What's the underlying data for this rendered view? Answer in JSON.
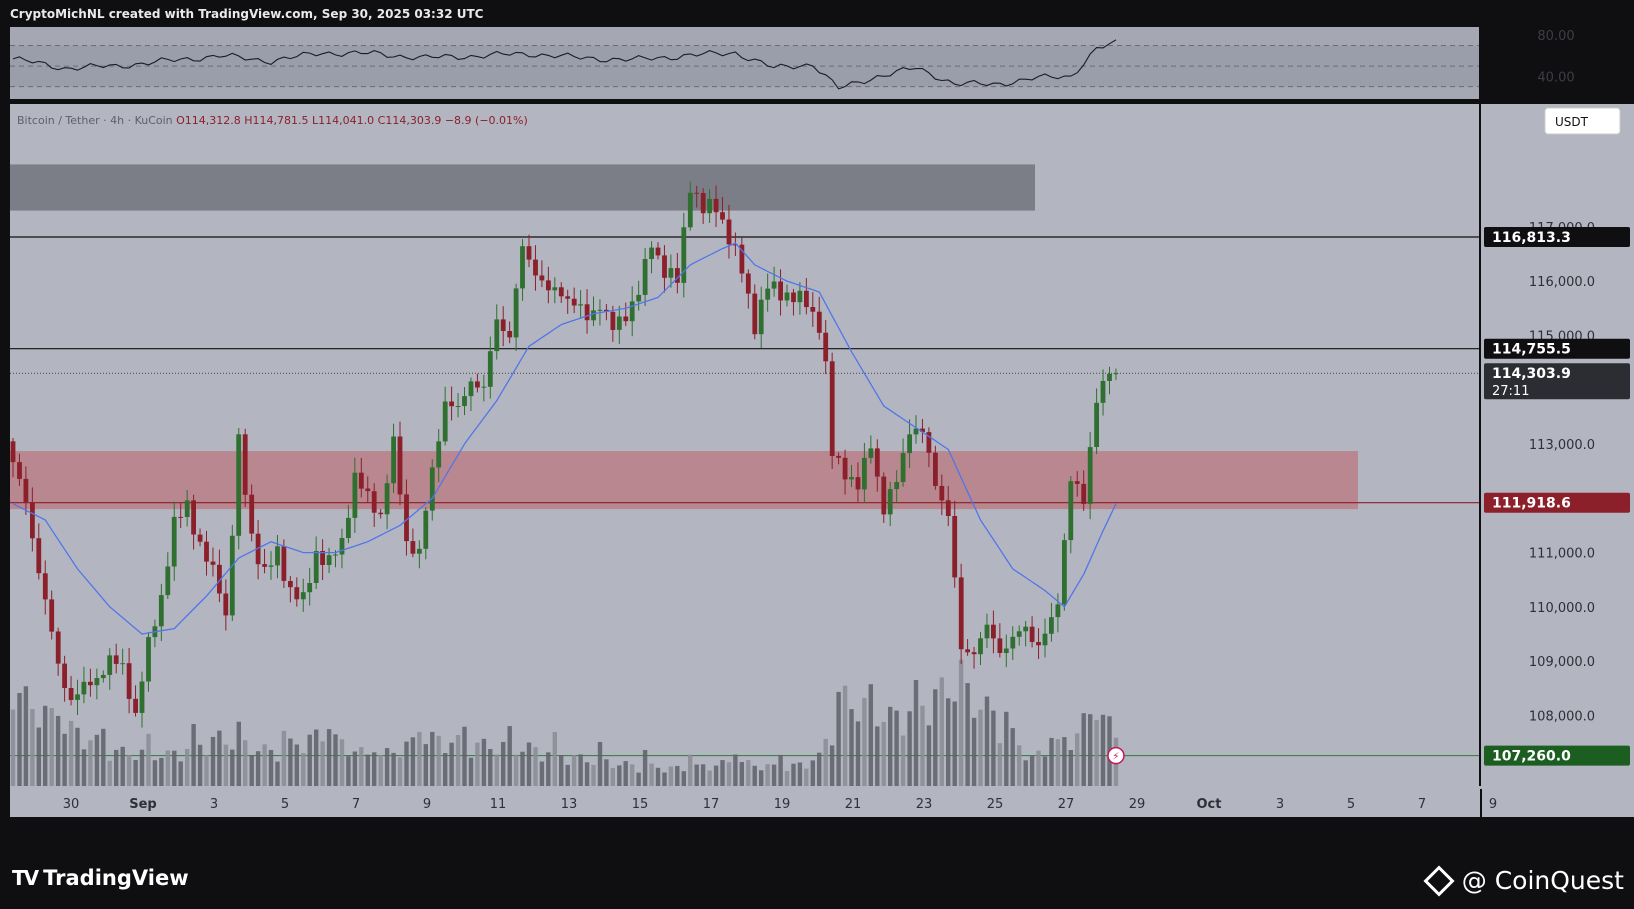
{
  "header": {
    "text": "CryptoMichNL created with TradingView.com, Sep 30, 2025 03:32 UTC"
  },
  "footer": {
    "brand_logo": "TV",
    "brand": "TradingView",
    "credit": "@ CoinQuest"
  },
  "colors": {
    "background": "#b3b6c1",
    "frame": "#0f0f11",
    "bull": "#2f6f2f",
    "bear": "#8b1f2a",
    "ma": "#5276e8",
    "supply_zone": "#7b7e87",
    "demand_zone": "#b88790",
    "rsi_panel": "#a5a8b2",
    "volume": "#5e6068"
  },
  "rsi": {
    "labels": [
      "80.00",
      "40.00"
    ],
    "band_top": 70,
    "band_bottom": 30
  },
  "chart_data": {
    "type": "candlestick",
    "symbol_line": {
      "name": "Bitcoin / Tether · 4h · KuCoin",
      "open": "O114,312.8",
      "high": "H114,781.5",
      "low": "L114,041.0",
      "close": "C114,303.9",
      "change": "−8.9 (−0.01%)"
    },
    "currency_button": "USDT",
    "y_axis": {
      "ticks": [
        117000,
        116000,
        115000,
        113000,
        111000,
        110000,
        109000,
        108000
      ],
      "tick_labels": [
        "117,000.0",
        "116,000.0",
        "115,000.0",
        "113,000.0",
        "111,000.0",
        "110,000.0",
        "109,000.0",
        "108,000.0"
      ]
    },
    "x_axis": {
      "labels": [
        "30",
        "Sep",
        "3",
        "5",
        "7",
        "9",
        "11",
        "13",
        "15",
        "17",
        "19",
        "21",
        "23",
        "25",
        "27",
        "29",
        "Oct",
        "3",
        "5",
        "7",
        "9"
      ]
    },
    "price_tags": [
      {
        "label": "116,813.3",
        "value": 116813.3,
        "style": "dark"
      },
      {
        "label": "114,755.5",
        "value": 114755.5,
        "style": "dark"
      },
      {
        "label": "114,303.9",
        "sub": "27:11",
        "value": 114303.9,
        "style": "current"
      },
      {
        "label": "111,918.6",
        "value": 111918.6,
        "style": "red"
      },
      {
        "label": "107,260.0",
        "value": 107260.0,
        "style": "green"
      }
    ],
    "horizontal_lines": [
      116813.3,
      114755.5,
      111918.6
    ],
    "current_price": 114303.9,
    "zones": [
      {
        "name": "supply",
        "from": 117300,
        "to": 118150
      },
      {
        "name": "demand",
        "from": 111800,
        "to": 112870
      }
    ],
    "moving_average_color": "#5276e8",
    "price_path": [
      [
        0,
        113050
      ],
      [
        3,
        111900
      ],
      [
        6,
        110100
      ],
      [
        8,
        108900
      ],
      [
        10,
        108300
      ],
      [
        14,
        108700
      ],
      [
        16,
        109000
      ],
      [
        18,
        108900
      ],
      [
        20,
        108000
      ],
      [
        22,
        109300
      ],
      [
        24,
        110200
      ],
      [
        26,
        111500
      ],
      [
        28,
        111900
      ],
      [
        30,
        111100
      ],
      [
        33,
        110400
      ],
      [
        34,
        109800
      ],
      [
        36,
        113000
      ],
      [
        38,
        111300
      ],
      [
        40,
        110600
      ],
      [
        42,
        111000
      ],
      [
        44,
        110300
      ],
      [
        46,
        110100
      ],
      [
        48,
        111000
      ],
      [
        50,
        110800
      ],
      [
        52,
        111200
      ],
      [
        54,
        112400
      ],
      [
        56,
        112000
      ],
      [
        58,
        111700
      ],
      [
        60,
        113000
      ],
      [
        62,
        111200
      ],
      [
        64,
        111000
      ],
      [
        66,
        112500
      ],
      [
        68,
        113800
      ],
      [
        70,
        113600
      ],
      [
        72,
        114200
      ],
      [
        74,
        114000
      ],
      [
        76,
        115300
      ],
      [
        78,
        115000
      ],
      [
        80,
        116600
      ],
      [
        82,
        116200
      ],
      [
        84,
        115800
      ],
      [
        86,
        115800
      ],
      [
        88,
        115600
      ],
      [
        90,
        115300
      ],
      [
        92,
        115600
      ],
      [
        94,
        115100
      ],
      [
        96,
        115400
      ],
      [
        98,
        115800
      ],
      [
        100,
        116700
      ],
      [
        102,
        116200
      ],
      [
        104,
        116000
      ],
      [
        106,
        117800
      ],
      [
        108,
        117300
      ],
      [
        110,
        117400
      ],
      [
        112,
        116800
      ],
      [
        114,
        116200
      ],
      [
        116,
        115200
      ],
      [
        118,
        115900
      ],
      [
        120,
        115800
      ],
      [
        122,
        115700
      ],
      [
        124,
        115600
      ],
      [
        126,
        115200
      ],
      [
        127,
        114400
      ],
      [
        128,
        112800
      ],
      [
        130,
        112500
      ],
      [
        132,
        112200
      ],
      [
        134,
        113000
      ],
      [
        136,
        111800
      ],
      [
        138,
        112300
      ],
      [
        140,
        113300
      ],
      [
        142,
        113200
      ],
      [
        144,
        112300
      ],
      [
        146,
        111700
      ],
      [
        148,
        109200
      ],
      [
        150,
        109200
      ],
      [
        152,
        109600
      ],
      [
        154,
        109200
      ],
      [
        156,
        109400
      ],
      [
        158,
        109600
      ],
      [
        160,
        109300
      ],
      [
        162,
        109700
      ],
      [
        163,
        110100
      ],
      [
        165,
        112400
      ],
      [
        167,
        111900
      ],
      [
        169,
        113900
      ],
      [
        171,
        114304
      ]
    ],
    "ma_path": [
      [
        0,
        111900
      ],
      [
        5,
        111600
      ],
      [
        10,
        110700
      ],
      [
        15,
        110000
      ],
      [
        20,
        109500
      ],
      [
        25,
        109600
      ],
      [
        30,
        110200
      ],
      [
        35,
        110900
      ],
      [
        40,
        111200
      ],
      [
        45,
        111000
      ],
      [
        50,
        111000
      ],
      [
        55,
        111200
      ],
      [
        60,
        111500
      ],
      [
        65,
        112000
      ],
      [
        70,
        113000
      ],
      [
        75,
        113800
      ],
      [
        80,
        114800
      ],
      [
        85,
        115200
      ],
      [
        90,
        115400
      ],
      [
        95,
        115500
      ],
      [
        100,
        115700
      ],
      [
        105,
        116300
      ],
      [
        110,
        116600
      ],
      [
        112,
        116700
      ],
      [
        115,
        116300
      ],
      [
        120,
        116000
      ],
      [
        125,
        115800
      ],
      [
        130,
        114700
      ],
      [
        135,
        113700
      ],
      [
        140,
        113300
      ],
      [
        145,
        112900
      ],
      [
        150,
        111600
      ],
      [
        155,
        110700
      ],
      [
        160,
        110300
      ],
      [
        163,
        110000
      ],
      [
        166,
        110600
      ],
      [
        169,
        111400
      ],
      [
        171,
        111900
      ]
    ],
    "rsi_path": [
      [
        0,
        57
      ],
      [
        8,
        48
      ],
      [
        16,
        50
      ],
      [
        24,
        55
      ],
      [
        32,
        60
      ],
      [
        40,
        55
      ],
      [
        48,
        63
      ],
      [
        56,
        62
      ],
      [
        64,
        58
      ],
      [
        72,
        60
      ],
      [
        80,
        62
      ],
      [
        88,
        58
      ],
      [
        96,
        56
      ],
      [
        104,
        60
      ],
      [
        112,
        63
      ],
      [
        118,
        48
      ],
      [
        124,
        52
      ],
      [
        128,
        28
      ],
      [
        134,
        40
      ],
      [
        140,
        48
      ],
      [
        146,
        33
      ],
      [
        152,
        32
      ],
      [
        158,
        38
      ],
      [
        164,
        40
      ],
      [
        168,
        67
      ],
      [
        171,
        72
      ]
    ],
    "volume_profile": [
      [
        0,
        0.55
      ],
      [
        8,
        0.35
      ],
      [
        16,
        0.2
      ],
      [
        24,
        0.18
      ],
      [
        32,
        0.28
      ],
      [
        40,
        0.2
      ],
      [
        48,
        0.3
      ],
      [
        56,
        0.16
      ],
      [
        64,
        0.28
      ],
      [
        72,
        0.24
      ],
      [
        80,
        0.22
      ],
      [
        88,
        0.16
      ],
      [
        96,
        0.12
      ],
      [
        104,
        0.1
      ],
      [
        112,
        0.14
      ],
      [
        120,
        0.1
      ],
      [
        126,
        0.18
      ],
      [
        128,
        0.52
      ],
      [
        136,
        0.4
      ],
      [
        140,
        0.45
      ],
      [
        146,
        0.6
      ],
      [
        152,
        0.42
      ],
      [
        158,
        0.16
      ],
      [
        164,
        0.28
      ],
      [
        168,
        0.45
      ],
      [
        171,
        0.3
      ]
    ]
  }
}
